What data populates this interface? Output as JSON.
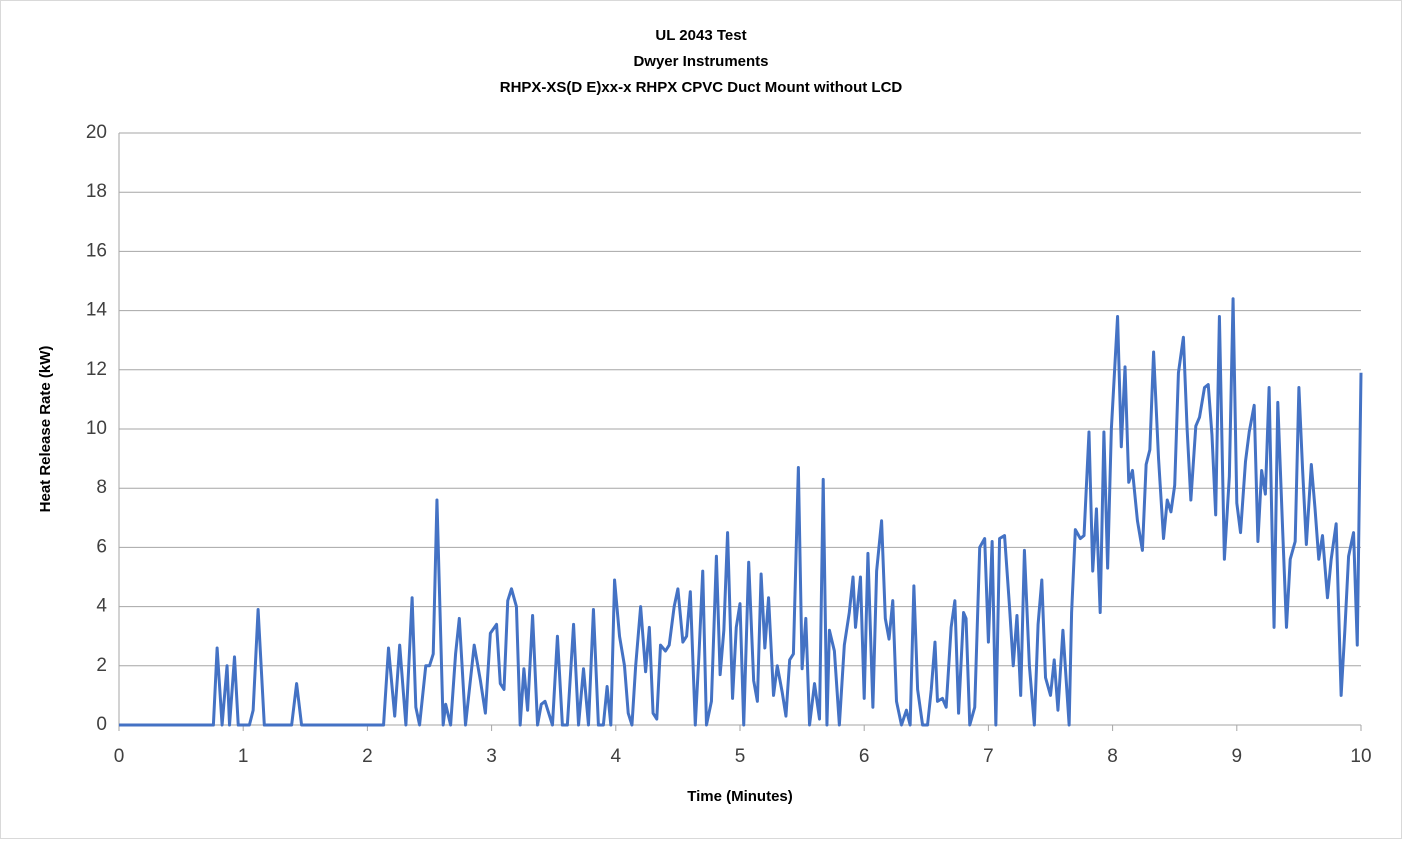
{
  "chart_data": {
    "type": "line",
    "title": [
      "UL 2043 Test",
      "Dwyer Instruments",
      "RHPX-XS(D E)xx-x RHPX CPVC Duct Mount without LCD"
    ],
    "x_label": "Time (Minutes)",
    "y_label": "Heat Release Rate (kW)",
    "xlim": [
      0,
      10
    ],
    "xticks": [
      0,
      1,
      2,
      3,
      4,
      5,
      6,
      7,
      8,
      9,
      10
    ],
    "ylim": [
      0,
      20
    ],
    "yticks": [
      0,
      2,
      4,
      6,
      8,
      10,
      12,
      14,
      16,
      18,
      20
    ],
    "grid": true,
    "color": "#4472c4",
    "x": [
      0,
      0.76,
      0.79,
      0.83,
      0.87,
      0.89,
      0.93,
      0.96,
      1.05,
      1.08,
      1.12,
      1.17,
      1.39,
      1.43,
      1.47,
      2.13,
      2.17,
      2.22,
      2.26,
      2.31,
      2.36,
      2.39,
      2.42,
      2.47,
      2.5,
      2.53,
      2.56,
      2.61,
      2.63,
      2.67,
      2.71,
      2.74,
      2.79,
      2.86,
      2.91,
      2.95,
      2.99,
      3.04,
      3.07,
      3.1,
      3.13,
      3.16,
      3.2,
      3.23,
      3.26,
      3.29,
      3.33,
      3.37,
      3.4,
      3.43,
      3.49,
      3.53,
      3.57,
      3.61,
      3.66,
      3.7,
      3.74,
      3.78,
      3.82,
      3.86,
      3.9,
      3.93,
      3.96,
      3.99,
      4.03,
      4.07,
      4.1,
      4.13,
      4.16,
      4.2,
      4.24,
      4.27,
      4.3,
      4.33,
      4.36,
      4.4,
      4.43,
      4.47,
      4.5,
      4.54,
      4.57,
      4.6,
      4.64,
      4.67,
      4.7,
      4.73,
      4.77,
      4.81,
      4.84,
      4.87,
      4.9,
      4.94,
      4.97,
      5,
      5.03,
      5.07,
      5.11,
      5.14,
      5.17,
      5.2,
      5.23,
      5.27,
      5.3,
      5.34,
      5.37,
      5.4,
      5.43,
      5.47,
      5.5,
      5.53,
      5.56,
      5.6,
      5.64,
      5.67,
      5.7,
      5.72,
      5.76,
      5.8,
      5.84,
      5.88,
      5.91,
      5.93,
      5.97,
      6,
      6.03,
      6.07,
      6.1,
      6.14,
      6.17,
      6.2,
      6.23,
      6.26,
      6.3,
      6.34,
      6.37,
      6.4,
      6.43,
      6.47,
      6.51,
      6.54,
      6.57,
      6.59,
      6.63,
      6.66,
      6.7,
      6.73,
      6.76,
      6.8,
      6.82,
      6.85,
      6.89,
      6.93,
      6.97,
      7,
      7.03,
      7.06,
      7.09,
      7.13,
      7.17,
      7.2,
      7.23,
      7.26,
      7.29,
      7.33,
      7.37,
      7.4,
      7.43,
      7.46,
      7.5,
      7.53,
      7.56,
      7.6,
      7.65,
      7.67,
      7.7,
      7.74,
      7.77,
      7.81,
      7.84,
      7.87,
      7.9,
      7.93,
      7.96,
      7.99,
      8.04,
      8.07,
      8.1,
      8.13,
      8.16,
      8.2,
      8.24,
      8.27,
      8.3,
      8.33,
      8.37,
      8.41,
      8.44,
      8.47,
      8.5,
      8.53,
      8.57,
      8.6,
      8.63,
      8.67,
      8.7,
      8.74,
      8.77,
      8.8,
      8.83,
      8.86,
      8.9,
      8.94,
      8.97,
      9,
      9.03,
      9.07,
      9.1,
      9.14,
      9.17,
      9.2,
      9.23,
      9.26,
      9.3,
      9.33,
      9.37,
      9.4,
      9.43,
      9.47,
      9.5,
      9.53,
      9.56,
      9.6,
      9.63,
      9.66,
      9.69,
      9.73,
      9.76,
      9.8,
      9.84,
      9.87,
      9.9,
      9.94,
      9.97,
      10
    ],
    "values": [
      0,
      0,
      2.6,
      0,
      2,
      0,
      2.3,
      0,
      0,
      0.5,
      3.9,
      0,
      0,
      1.4,
      0,
      0,
      2.6,
      0.3,
      2.7,
      0,
      4.3,
      0.6,
      0,
      2,
      2,
      2.4,
      7.6,
      0,
      0.7,
      0,
      2.4,
      3.6,
      0,
      2.7,
      1.5,
      0.4,
      3.1,
      3.4,
      1.4,
      1.2,
      4.2,
      4.6,
      4,
      0,
      1.9,
      0.5,
      3.7,
      0,
      0.7,
      0.8,
      0,
      3,
      0,
      0,
      3.4,
      0,
      1.9,
      0,
      3.9,
      0,
      0,
      1.3,
      0,
      4.9,
      3,
      2,
      0.4,
      0,
      2,
      4,
      1.8,
      3.3,
      0.4,
      0.2,
      2.7,
      2.5,
      2.7,
      4,
      4.6,
      2.8,
      3,
      4.5,
      0,
      2.4,
      5.2,
      0,
      0.8,
      5.7,
      1.7,
      3.2,
      6.5,
      0.9,
      3.3,
      4.1,
      0,
      5.5,
      1.5,
      0.8,
      5.1,
      2.6,
      4.3,
      1,
      2,
      1.1,
      0.3,
      2.2,
      2.4,
      8.7,
      1.9,
      3.6,
      0,
      1.4,
      0.2,
      8.3,
      0,
      3.2,
      2.5,
      0,
      2.7,
      3.8,
      5,
      3.3,
      5,
      0.9,
      5.8,
      0.6,
      5.2,
      6.9,
      3.6,
      2.9,
      4.2,
      0.8,
      0,
      0.5,
      0,
      4.7,
      1.2,
      0,
      0,
      1.2,
      2.8,
      0.8,
      0.9,
      0.6,
      3.3,
      4.2,
      0.4,
      3.8,
      3.6,
      0,
      0.6,
      6,
      6.3,
      2.8,
      6.2,
      0,
      6.3,
      6.4,
      4,
      2,
      3.7,
      1,
      5.9,
      2,
      0,
      3.4,
      4.9,
      1.6,
      1,
      2.2,
      0.5,
      3.2,
      0,
      3.8,
      6.6,
      6.3,
      6.4,
      9.9,
      5.2,
      7.3,
      3.8,
      9.9,
      5.3,
      10,
      13.8,
      9.4,
      12.1,
      8.2,
      8.6,
      6.9,
      5.9,
      8.8,
      9.3,
      12.6,
      9,
      6.3,
      7.6,
      7.2,
      8.1,
      11.9,
      13.1,
      10,
      7.6,
      10.1,
      10.4,
      11.4,
      11.5,
      9.8,
      7.1,
      13.8,
      5.6,
      8.4,
      14.4,
      7.5,
      6.5,
      8.9,
      9.9,
      10.8,
      6.2,
      8.6,
      7.8,
      11.4,
      3.3,
      10.9,
      6.5,
      3.3,
      5.6,
      6.2,
      11.4,
      8.6,
      6.1,
      8.8,
      7.3,
      5.6,
      6.4,
      4.3,
      5.6,
      6.8,
      1,
      3.2,
      5.7,
      6.5,
      2.7,
      11.9
    ]
  }
}
